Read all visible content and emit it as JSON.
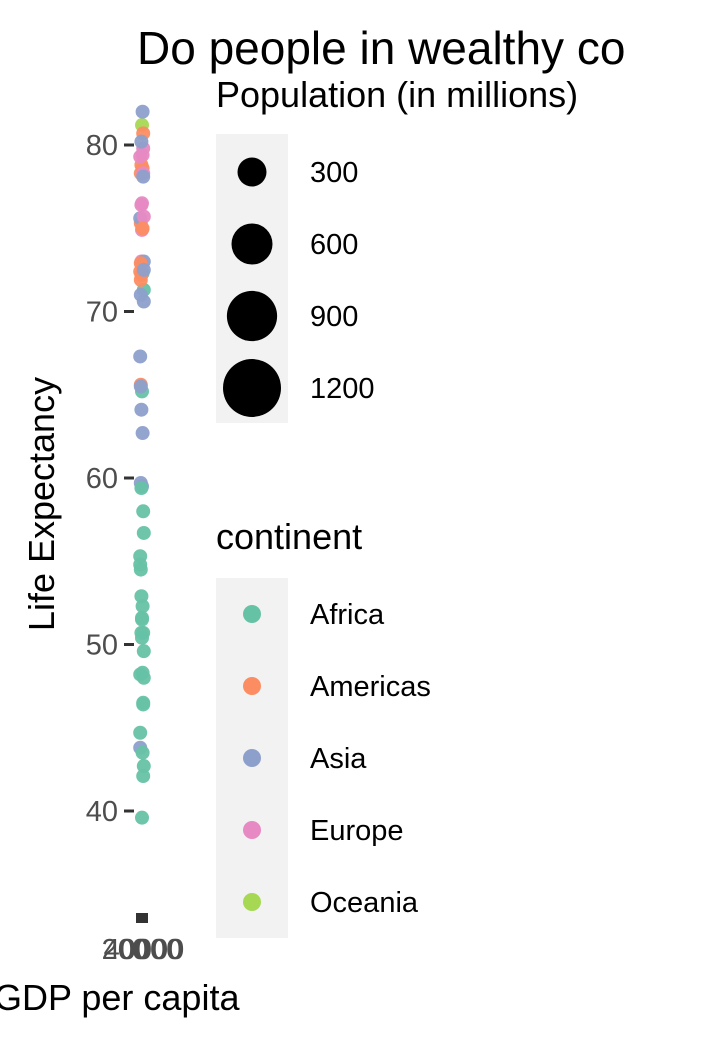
{
  "chart_data": {
    "type": "scatter",
    "title": "Do people in wealthy co",
    "xlabel": "GDP per capita",
    "ylabel": "Life Expectancy",
    "y_ticks": [
      40,
      50,
      60,
      70,
      80
    ],
    "x_ticks": [
      "0",
      "20000",
      "40000"
    ],
    "ylim": [
      33,
      82
    ],
    "grid": false,
    "size_legend": {
      "title": "Population (in millions)",
      "entries": [
        {
          "label": "300",
          "value": 300
        },
        {
          "label": "600",
          "value": 600
        },
        {
          "label": "900",
          "value": 900
        },
        {
          "label": "1200",
          "value": 1200
        }
      ]
    },
    "color_legend": {
      "title": "continent",
      "entries": [
        {
          "label": "Africa",
          "color": "#66c2a5"
        },
        {
          "label": "Americas",
          "color": "#fc8d62"
        },
        {
          "label": "Asia",
          "color": "#8da0cb"
        },
        {
          "label": "Europe",
          "color": "#e78ac3"
        },
        {
          "label": "Oceania",
          "color": "#a6d854"
        }
      ]
    },
    "points": [
      {
        "continent": "Asia",
        "y": 43.8
      },
      {
        "continent": "Europe",
        "y": 76.4
      },
      {
        "continent": "Africa",
        "y": 72.3
      },
      {
        "continent": "Africa",
        "y": 42.7
      },
      {
        "continent": "Americas",
        "y": 75.3
      },
      {
        "continent": "Oceania",
        "y": 81.2
      },
      {
        "continent": "Europe",
        "y": 79.8
      },
      {
        "continent": "Asia",
        "y": 75.6
      },
      {
        "continent": "Asia",
        "y": 64.1
      },
      {
        "continent": "Europe",
        "y": 79.4
      },
      {
        "continent": "Africa",
        "y": 56.7
      },
      {
        "continent": "Americas",
        "y": 65.6
      },
      {
        "continent": "Europe",
        "y": 74.9
      },
      {
        "continent": "Africa",
        "y": 50.7
      },
      {
        "continent": "Americas",
        "y": 72.4
      },
      {
        "continent": "Europe",
        "y": 73.0
      },
      {
        "continent": "Africa",
        "y": 52.3
      },
      {
        "continent": "Africa",
        "y": 49.6
      },
      {
        "continent": "Asia",
        "y": 59.7
      },
      {
        "continent": "Africa",
        "y": 50.4
      },
      {
        "continent": "Americas",
        "y": 80.7
      },
      {
        "continent": "Africa",
        "y": 44.7
      },
      {
        "continent": "Africa",
        "y": 50.7
      },
      {
        "continent": "Americas",
        "y": 78.6
      },
      {
        "continent": "Asia",
        "y": 73.0
      },
      {
        "continent": "Americas",
        "y": 72.9
      },
      {
        "continent": "Africa",
        "y": 65.2
      },
      {
        "continent": "Africa",
        "y": 46.5
      },
      {
        "continent": "Africa",
        "y": 55.3
      },
      {
        "continent": "Americas",
        "y": 78.8
      },
      {
        "continent": "Africa",
        "y": 48.3
      },
      {
        "continent": "Europe",
        "y": 75.7
      },
      {
        "continent": "Americas",
        "y": 78.3
      },
      {
        "continent": "Europe",
        "y": 76.5
      },
      {
        "continent": "Europe",
        "y": 78.3
      },
      {
        "continent": "Africa",
        "y": 54.8
      },
      {
        "continent": "Americas",
        "y": 72.2
      },
      {
        "continent": "Americas",
        "y": 74.99
      },
      {
        "continent": "Africa",
        "y": 71.3
      },
      {
        "continent": "Americas",
        "y": 71.9
      },
      {
        "continent": "Africa",
        "y": 51.6
      },
      {
        "continent": "Africa",
        "y": 58.0
      },
      {
        "continent": "Europe",
        "y": 79.3
      },
      {
        "continent": "Africa",
        "y": 52.9
      },
      {
        "continent": "Asia",
        "y": 62.7
      },
      {
        "continent": "Asia",
        "y": 70.6
      },
      {
        "continent": "Asia",
        "y": 71.0
      },
      {
        "continent": "Asia",
        "y": 59.5
      },
      {
        "continent": "Asia",
        "y": 78.1
      },
      {
        "continent": "Asia",
        "y": 67.3
      },
      {
        "continent": "Asia",
        "y": 80.2
      },
      {
        "continent": "Asia",
        "y": 82.0
      },
      {
        "continent": "Asia",
        "y": 72.5
      },
      {
        "continent": "Asia",
        "y": 65.5
      },
      {
        "continent": "Africa",
        "y": 39.6
      },
      {
        "continent": "Africa",
        "y": 42.1
      },
      {
        "continent": "Africa",
        "y": 48.2
      },
      {
        "continent": "Africa",
        "y": 59.4
      },
      {
        "continent": "Africa",
        "y": 43.5
      },
      {
        "continent": "Africa",
        "y": 48.0
      },
      {
        "continent": "Africa",
        "y": 54.5
      },
      {
        "continent": "Africa",
        "y": 51.5
      },
      {
        "continent": "Africa",
        "y": 46.4
      }
    ]
  }
}
